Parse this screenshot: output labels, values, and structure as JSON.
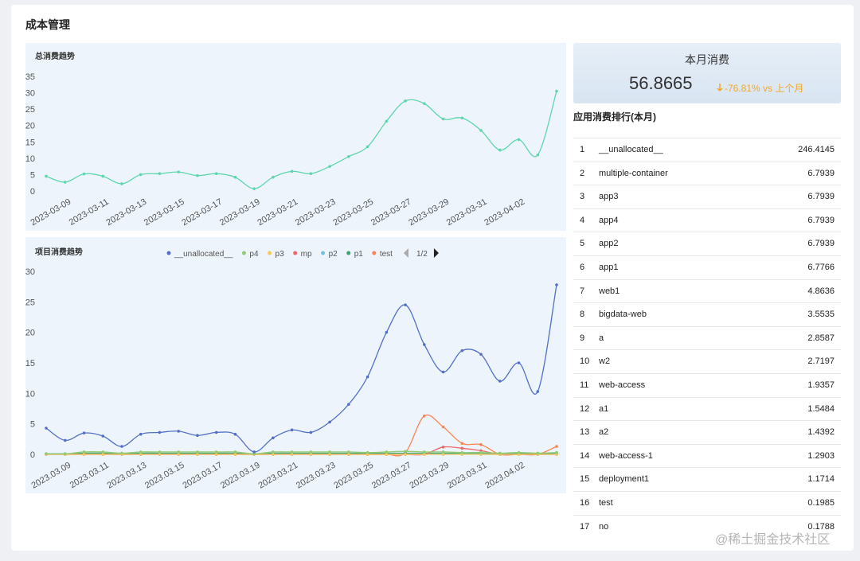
{
  "page_title": "成本管理",
  "chart_data": [
    {
      "type": "line",
      "title": "总消费趋势",
      "categories": [
        null,
        "2023-03-09",
        null,
        "2023-03-11",
        null,
        "2023-03-13",
        null,
        "2023-03-15",
        null,
        "2023-03-17",
        null,
        "2023-03-19",
        null,
        "2023-03-21",
        null,
        "2023-03-23",
        null,
        "2023-03-25",
        null,
        "2023-03-27",
        null,
        "2023-03-29",
        null,
        "2023-03-31",
        null,
        "2023-04-02",
        null,
        null
      ],
      "values": [
        4.5,
        2.7,
        5.2,
        4.5,
        2.2,
        5.0,
        5.3,
        5.8,
        4.7,
        5.3,
        4.2,
        0.7,
        4.2,
        6.0,
        5.3,
        7.5,
        10.5,
        13.5,
        21.3,
        27.5,
        26.7,
        22.0,
        22.3,
        18.5,
        12.5,
        15.7,
        11.0,
        30.5
      ],
      "color": "#5fd6ad",
      "ylim": [
        0,
        35
      ],
      "yticks": [
        0,
        5,
        10,
        15,
        20,
        25,
        30,
        35
      ]
    },
    {
      "type": "line",
      "title": "项目消费趋势",
      "legend_page": "1/2",
      "categories": [
        null,
        "2023.03.09",
        null,
        "2023.03.11",
        null,
        "2023.03.13",
        null,
        "2023.03.15",
        null,
        "2023.03.17",
        null,
        "2023.03.19",
        null,
        "2023.03.21",
        null,
        "2023.03.23",
        null,
        "2023.03.25",
        null,
        "2023.03.27",
        null,
        "2023.03.29",
        null,
        "2023.03.31",
        null,
        "2023.04.02",
        null,
        null
      ],
      "series": [
        {
          "name": "__unallocated__",
          "color": "#5470c6",
          "values": [
            4.3,
            2.3,
            3.5,
            3.0,
            1.3,
            3.3,
            3.6,
            3.8,
            3.1,
            3.6,
            3.3,
            0.4,
            2.7,
            4.0,
            3.6,
            5.3,
            8.2,
            12.7,
            20.0,
            24.5,
            18.0,
            13.5,
            17.0,
            16.4,
            12.0,
            15.0,
            10.3,
            27.8
          ]
        },
        {
          "name": "p4",
          "color": "#91cc75",
          "values": [
            0.1,
            0.1,
            0.4,
            0.4,
            0.2,
            0.4,
            0.4,
            0.4,
            0.4,
            0.4,
            0.4,
            0.1,
            0.4,
            0.4,
            0.4,
            0.4,
            0.4,
            0.3,
            0.4,
            0.5,
            0.4,
            0.4,
            0.3,
            0.3,
            0.2,
            0.3,
            0.2,
            0.3
          ]
        },
        {
          "name": "p3",
          "color": "#fac858",
          "values": [
            0,
            0,
            0,
            0,
            0,
            0,
            0,
            0,
            0,
            0,
            0,
            0,
            0,
            0,
            0,
            0,
            0,
            0,
            0,
            0,
            0,
            0,
            0,
            0,
            0,
            0,
            0,
            0
          ]
        },
        {
          "name": "mp",
          "color": "#ee6666",
          "values": [
            0,
            0,
            0,
            0,
            0,
            0,
            0,
            0,
            0,
            0,
            0,
            0,
            0,
            0,
            0,
            0,
            0,
            0,
            0,
            0,
            0,
            1.2,
            1.0,
            0.6,
            0,
            0,
            0,
            0
          ]
        },
        {
          "name": "p2",
          "color": "#73c0de",
          "values": [
            0,
            0,
            0,
            0,
            0,
            0,
            0,
            0,
            0,
            0,
            0,
            0,
            0,
            0,
            0,
            0,
            0,
            0,
            0,
            0,
            0,
            0,
            0,
            0,
            0,
            0,
            0,
            0
          ]
        },
        {
          "name": "p1",
          "color": "#3ba272",
          "values": [
            0.1,
            0.1,
            0.2,
            0.2,
            0.1,
            0.2,
            0.2,
            0.2,
            0.2,
            0.2,
            0.2,
            0.1,
            0.2,
            0.2,
            0.2,
            0.2,
            0.2,
            0.2,
            0.2,
            0.2,
            0.2,
            0.2,
            0.2,
            0.2,
            0.1,
            0.2,
            0.1,
            0.2
          ]
        },
        {
          "name": "test",
          "color": "#fc8452",
          "values": [
            0,
            0,
            0,
            0,
            0,
            0,
            0,
            0,
            0,
            0,
            0,
            0,
            0,
            0,
            0,
            0,
            0,
            0,
            0,
            0.3,
            6.3,
            4.5,
            1.8,
            1.6,
            0,
            0,
            0,
            1.3
          ]
        }
      ],
      "ylim": [
        0,
        30
      ],
      "yticks": [
        0,
        5,
        10,
        15,
        20,
        25,
        30
      ]
    }
  ],
  "summary": {
    "title": "本月消费",
    "value": "56.8665",
    "change": "-76.81% vs 上个月"
  },
  "ranking": {
    "title": "应用消费排行(本月)",
    "rows": [
      [
        1,
        "__unallocated__",
        246.4145
      ],
      [
        2,
        "multiple-container",
        6.7939
      ],
      [
        3,
        "app3",
        6.7939
      ],
      [
        4,
        "app4",
        6.7939
      ],
      [
        5,
        "app2",
        6.7939
      ],
      [
        6,
        "app1",
        6.7766
      ],
      [
        7,
        "web1",
        4.8636
      ],
      [
        8,
        "bigdata-web",
        3.5535
      ],
      [
        9,
        "a",
        2.8587
      ],
      [
        10,
        "w2",
        2.7197
      ],
      [
        11,
        "web-access",
        1.9357
      ],
      [
        12,
        "a1",
        1.5484
      ],
      [
        13,
        "a2",
        1.4392
      ],
      [
        14,
        "web-access-1",
        1.2903
      ],
      [
        15,
        "deployment1",
        1.1714
      ],
      [
        16,
        "test",
        0.1985
      ],
      [
        17,
        "no",
        0.1788
      ]
    ]
  },
  "watermark": "@稀土掘金技术社区"
}
